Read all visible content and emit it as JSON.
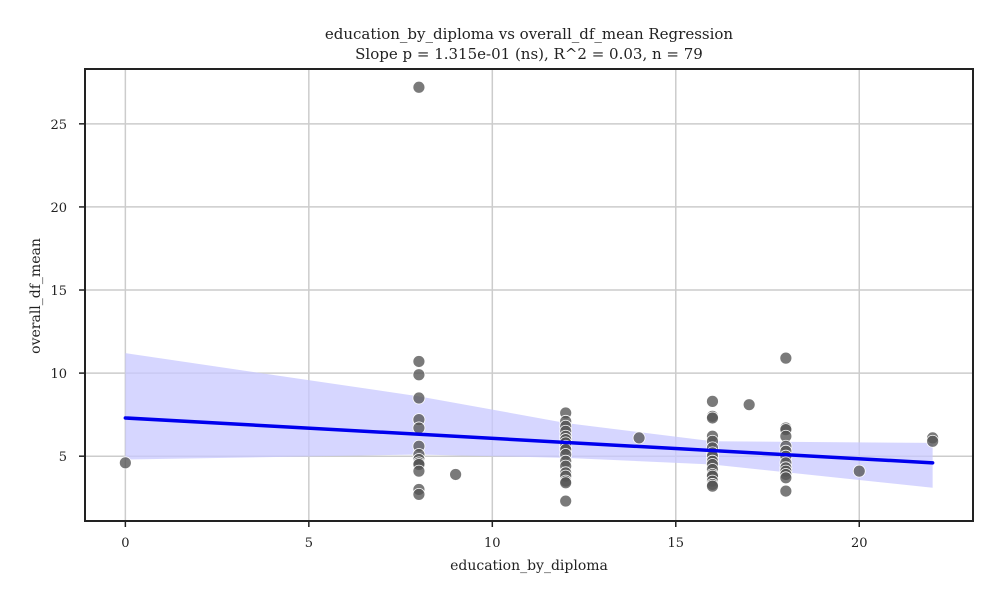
{
  "chart_data": {
    "type": "scatter",
    "title": "education_by_diploma vs overall_df_mean Regression",
    "subtitle": "Slope p = 1.315e-01 (ns), R^2 = 0.03, n = 79",
    "xlabel": "education_by_diploma",
    "ylabel": "overall_df_mean",
    "xlim": [
      -1.1,
      23.1
    ],
    "ylim": [
      1.1,
      28.3
    ],
    "x_ticks": [
      0,
      5,
      10,
      15,
      20
    ],
    "y_ticks": [
      5,
      10,
      15,
      20,
      25
    ],
    "grid": true,
    "point_color": "#555555",
    "line_color": "#0000ee",
    "band_color": "#c8c8ff",
    "points": [
      {
        "x": 0,
        "y": 4.6
      },
      {
        "x": 8,
        "y": 27.2
      },
      {
        "x": 8,
        "y": 10.7
      },
      {
        "x": 8,
        "y": 9.9
      },
      {
        "x": 8,
        "y": 8.5
      },
      {
        "x": 8,
        "y": 7.2
      },
      {
        "x": 8,
        "y": 6.7
      },
      {
        "x": 8,
        "y": 5.6
      },
      {
        "x": 8,
        "y": 5.1
      },
      {
        "x": 8,
        "y": 4.8
      },
      {
        "x": 8,
        "y": 4.6
      },
      {
        "x": 8,
        "y": 4.5
      },
      {
        "x": 8,
        "y": 4.1
      },
      {
        "x": 8,
        "y": 3.0
      },
      {
        "x": 8,
        "y": 2.7
      },
      {
        "x": 9,
        "y": 3.9
      },
      {
        "x": 12,
        "y": 7.6
      },
      {
        "x": 12,
        "y": 7.1
      },
      {
        "x": 12,
        "y": 6.8
      },
      {
        "x": 12,
        "y": 6.5
      },
      {
        "x": 12,
        "y": 6.2
      },
      {
        "x": 12,
        "y": 6.0
      },
      {
        "x": 12,
        "y": 5.8
      },
      {
        "x": 12,
        "y": 5.6
      },
      {
        "x": 12,
        "y": 5.4
      },
      {
        "x": 12,
        "y": 5.1
      },
      {
        "x": 12,
        "y": 4.7
      },
      {
        "x": 12,
        "y": 4.4
      },
      {
        "x": 12,
        "y": 4.0
      },
      {
        "x": 12,
        "y": 3.8
      },
      {
        "x": 12,
        "y": 3.5
      },
      {
        "x": 12,
        "y": 3.4
      },
      {
        "x": 12,
        "y": 2.3
      },
      {
        "x": 14,
        "y": 6.1
      },
      {
        "x": 16,
        "y": 8.3
      },
      {
        "x": 16,
        "y": 7.4
      },
      {
        "x": 16,
        "y": 7.3
      },
      {
        "x": 16,
        "y": 6.2
      },
      {
        "x": 16,
        "y": 5.9
      },
      {
        "x": 16,
        "y": 5.5
      },
      {
        "x": 16,
        "y": 5.2
      },
      {
        "x": 16,
        "y": 5.0
      },
      {
        "x": 16,
        "y": 4.7
      },
      {
        "x": 16,
        "y": 4.5
      },
      {
        "x": 16,
        "y": 4.2
      },
      {
        "x": 16,
        "y": 3.9
      },
      {
        "x": 16,
        "y": 3.8
      },
      {
        "x": 16,
        "y": 3.5
      },
      {
        "x": 16,
        "y": 3.3
      },
      {
        "x": 16,
        "y": 3.2
      },
      {
        "x": 17,
        "y": 8.1
      },
      {
        "x": 18,
        "y": 10.9
      },
      {
        "x": 18,
        "y": 6.7
      },
      {
        "x": 18,
        "y": 6.6
      },
      {
        "x": 18,
        "y": 6.2
      },
      {
        "x": 18,
        "y": 5.6
      },
      {
        "x": 18,
        "y": 5.3
      },
      {
        "x": 18,
        "y": 5.0
      },
      {
        "x": 18,
        "y": 4.6
      },
      {
        "x": 18,
        "y": 4.3
      },
      {
        "x": 18,
        "y": 4.1
      },
      {
        "x": 18,
        "y": 3.9
      },
      {
        "x": 18,
        "y": 3.7
      },
      {
        "x": 18,
        "y": 2.9
      },
      {
        "x": 20,
        "y": 4.1
      },
      {
        "x": 22,
        "y": 6.1
      },
      {
        "x": 22,
        "y": 5.9
      }
    ],
    "regression_line": [
      {
        "x": 0,
        "y": 7.3
      },
      {
        "x": 22,
        "y": 4.6
      }
    ],
    "confidence_band": {
      "upper": [
        {
          "x": 0,
          "y": 11.2
        },
        {
          "x": 8,
          "y": 8.6
        },
        {
          "x": 12,
          "y": 7.0
        },
        {
          "x": 16,
          "y": 5.9
        },
        {
          "x": 22,
          "y": 5.8
        }
      ],
      "lower": [
        {
          "x": 0,
          "y": 4.8
        },
        {
          "x": 8,
          "y": 5.1
        },
        {
          "x": 12,
          "y": 4.9
        },
        {
          "x": 16,
          "y": 4.5
        },
        {
          "x": 22,
          "y": 3.1
        }
      ]
    }
  }
}
